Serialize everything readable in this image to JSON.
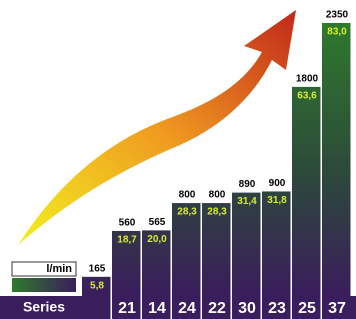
{
  "chart_data": {
    "type": "bar",
    "categories": [
      null,
      "21",
      "14",
      "24",
      "22",
      "30",
      "23",
      "25",
      "37"
    ],
    "category_label": "Series",
    "series": [
      {
        "name": "l/min",
        "color": "#000000",
        "values": [
          165,
          560,
          565,
          800,
          800,
          890,
          900,
          1800,
          2350
        ]
      },
      {
        "color": "#d8ec2c",
        "values": [
          5.8,
          18.7,
          20.0,
          28.3,
          28.3,
          31.4,
          31.8,
          63.6,
          83.0
        ],
        "value_labels": [
          "5,8",
          "18,7",
          "20,0",
          "28,3",
          "28,3",
          "31,4",
          "31,8",
          "63,6",
          "83,0"
        ]
      }
    ],
    "ylim": [
      0,
      2350
    ]
  }
}
